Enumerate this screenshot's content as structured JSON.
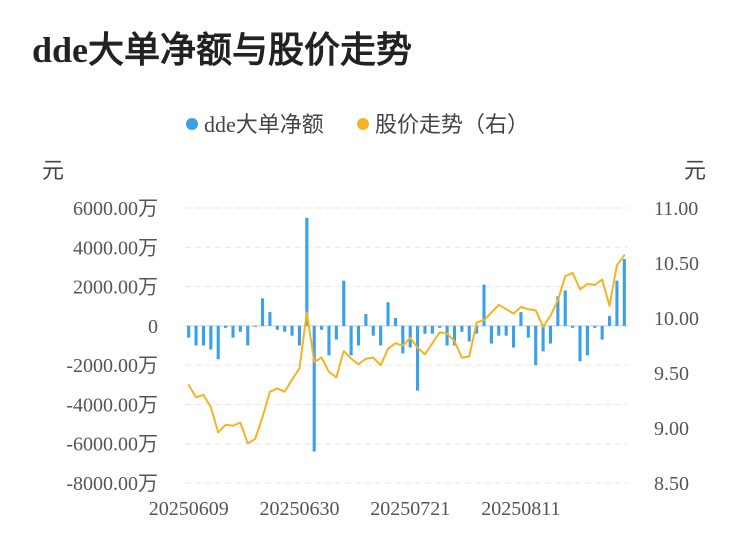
{
  "chart_data": {
    "type": "bar+line",
    "title": "dde大单净额与股价走势",
    "legend": [
      {
        "name": "dde大单净额",
        "color": "#3AA0E8"
      },
      {
        "name": "股价走势（右）",
        "color": "#F5B323"
      }
    ],
    "left_unit": "元",
    "right_unit": "元",
    "left_axis": {
      "ticks": [
        6000,
        4000,
        2000,
        0,
        -2000,
        -4000,
        -6000,
        -8000
      ],
      "tick_labels": [
        "6000.00万",
        "4000.00万",
        "2000.00万",
        "0",
        "-2000.00万",
        "-4000.00万",
        "-6000.00万",
        "-8000.00万"
      ],
      "ylim": [
        -8000,
        6000
      ]
    },
    "right_axis": {
      "ticks": [
        11.0,
        10.5,
        10.0,
        9.5,
        9.0,
        8.5
      ],
      "tick_labels": [
        "11.00",
        "10.50",
        "10.00",
        "9.50",
        "9.00",
        "8.50"
      ],
      "ylim": [
        8.5,
        11.0
      ]
    },
    "x_tick_labels": [
      {
        "index": 0,
        "label": "20250609"
      },
      {
        "index": 15,
        "label": "20250630"
      },
      {
        "index": 30,
        "label": "20250721"
      },
      {
        "index": 45,
        "label": "20250811"
      }
    ],
    "grid": true,
    "series": [
      {
        "name": "dde大单净额",
        "type": "bar",
        "values": [
          -600,
          -1000,
          -1000,
          -1200,
          -1700,
          -100,
          -600,
          -300,
          -1000,
          0,
          1400,
          700,
          -200,
          -300,
          -500,
          -1000,
          5500,
          -6400,
          -200,
          -1500,
          -700,
          2300,
          -1500,
          -1000,
          600,
          -500,
          -1000,
          1200,
          400,
          -1400,
          -1100,
          -3300,
          -400,
          -400,
          -100,
          -1000,
          -1000,
          -300,
          -800,
          -400,
          2100,
          -900,
          -500,
          -500,
          -1100,
          700,
          -600,
          -2000,
          -1300,
          -900,
          1500,
          1800,
          -100,
          -1800,
          -1500,
          -100,
          -700,
          500,
          2300,
          3400
        ]
      },
      {
        "name": "股价走势（右）",
        "type": "line",
        "values": [
          9.39,
          9.28,
          9.3,
          9.19,
          8.96,
          9.03,
          9.02,
          9.05,
          8.86,
          8.9,
          9.1,
          9.33,
          9.36,
          9.33,
          9.44,
          9.54,
          10.05,
          9.6,
          9.64,
          9.51,
          9.46,
          9.7,
          9.63,
          9.58,
          9.63,
          9.64,
          9.57,
          9.72,
          9.77,
          9.75,
          9.82,
          9.73,
          9.67,
          9.77,
          9.87,
          9.86,
          9.79,
          9.64,
          9.65,
          9.96,
          9.98,
          10.05,
          10.12,
          10.08,
          10.04,
          10.1,
          10.08,
          10.07,
          9.92,
          10.02,
          10.16,
          10.38,
          10.41,
          10.26,
          10.31,
          10.3,
          10.35,
          10.11,
          10.48,
          10.57
        ]
      }
    ]
  }
}
